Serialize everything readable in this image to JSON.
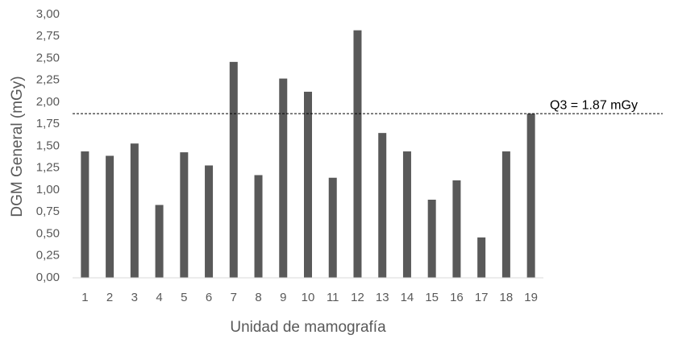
{
  "chart_data": {
    "type": "bar",
    "x_label": "Unidad de mamografía",
    "y_label": "DGM General (mGy)",
    "categories": [
      "1",
      "2",
      "3",
      "4",
      "5",
      "6",
      "7",
      "8",
      "9",
      "10",
      "11",
      "12",
      "13",
      "14",
      "15",
      "16",
      "17",
      "18",
      "19"
    ],
    "values": [
      1.44,
      1.39,
      1.53,
      0.83,
      1.43,
      1.28,
      2.46,
      1.17,
      2.27,
      2.12,
      1.14,
      2.82,
      1.65,
      1.44,
      0.89,
      1.11,
      0.46,
      1.44,
      1.87
    ],
    "color": "#595959",
    "ylim": [
      0,
      3
    ],
    "yticks": [
      {
        "value": 0,
        "label": "0,00"
      },
      {
        "value": 0.25,
        "label": "0,25"
      },
      {
        "value": 0.5,
        "label": "0,50"
      },
      {
        "value": 0.75,
        "label": "0,75"
      },
      {
        "value": 1,
        "label": "1,00"
      },
      {
        "value": 1.25,
        "label": "1,25"
      },
      {
        "value": 1.5,
        "label": "1,50"
      },
      {
        "value": 1.75,
        "label": "1,75"
      },
      {
        "value": 2,
        "label": "2,00"
      },
      {
        "value": 2.25,
        "label": "2,25"
      },
      {
        "value": 2.5,
        "label": "2,50"
      },
      {
        "value": 2.75,
        "label": "2,75"
      },
      {
        "value": 3,
        "label": "3,00"
      }
    ],
    "grid": false,
    "reference_line": {
      "value": 1.87,
      "label": "Q3 = 1.87 mGy"
    }
  }
}
